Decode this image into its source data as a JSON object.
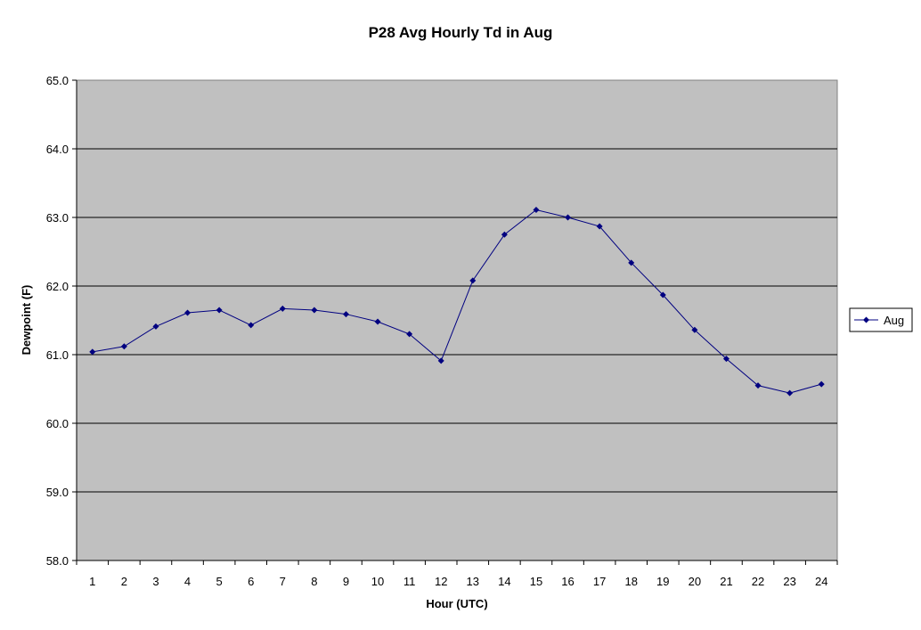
{
  "chart_data": {
    "type": "line",
    "title": "P28 Avg Hourly Td in Aug",
    "xlabel": "Hour (UTC)",
    "ylabel": "Dewpoint (F)",
    "categories": [
      "1",
      "2",
      "3",
      "4",
      "5",
      "6",
      "7",
      "8",
      "9",
      "10",
      "11",
      "12",
      "13",
      "14",
      "15",
      "16",
      "17",
      "18",
      "19",
      "20",
      "21",
      "22",
      "23",
      "24"
    ],
    "ylim": [
      58.0,
      65.0
    ],
    "yticks": [
      "58.0",
      "59.0",
      "60.0",
      "61.0",
      "62.0",
      "63.0",
      "64.0",
      "65.0"
    ],
    "grid": true,
    "legend_position": "right",
    "series": [
      {
        "name": "Aug",
        "color": "#000080",
        "values": [
          61.04,
          61.12,
          61.41,
          61.61,
          61.65,
          61.43,
          61.67,
          61.65,
          61.59,
          61.48,
          61.3,
          60.91,
          62.08,
          62.75,
          63.11,
          63.0,
          62.87,
          62.34,
          61.87,
          61.36,
          60.94,
          60.55,
          60.44,
          60.57
        ]
      }
    ],
    "plot_background": "#c0c0c0"
  }
}
